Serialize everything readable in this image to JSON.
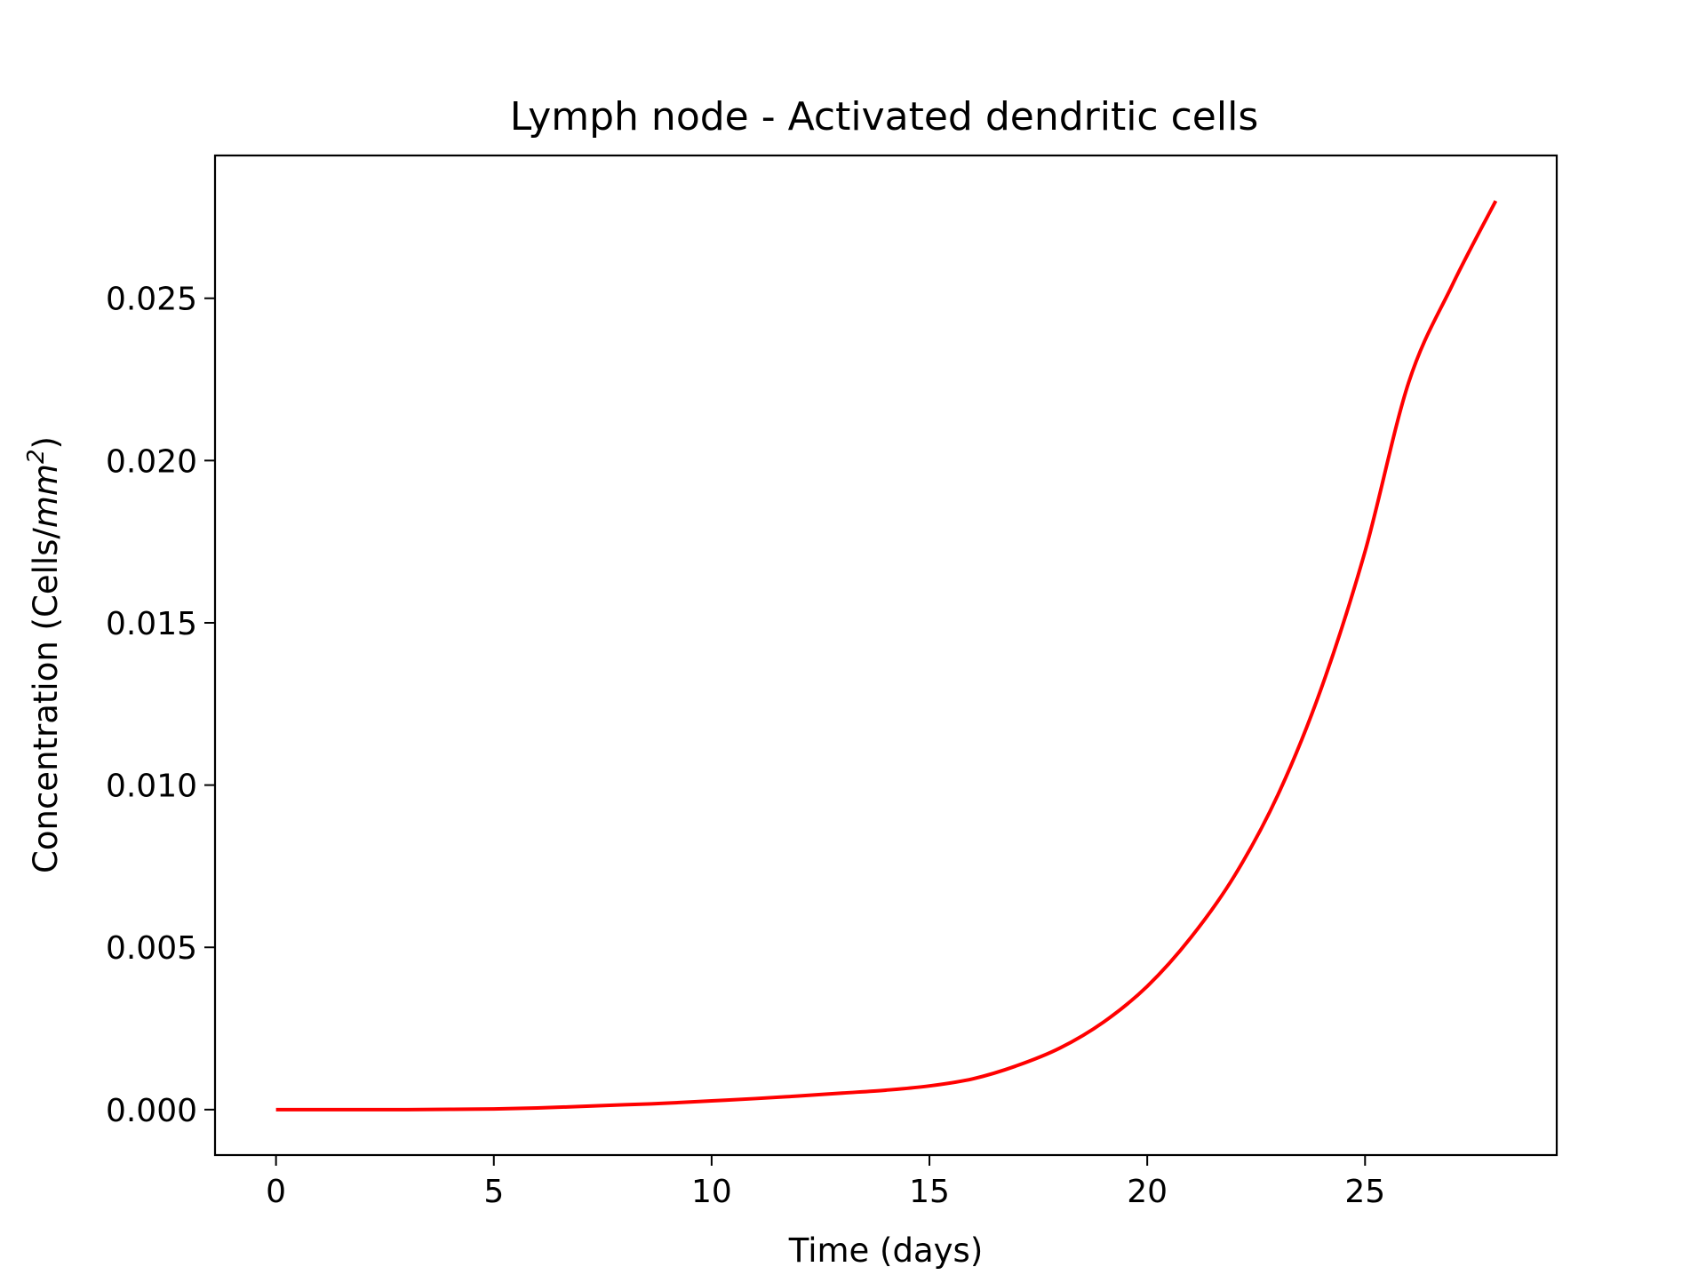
{
  "chart_data": {
    "type": "line",
    "title": "Lymph node - Activated dendritic cells",
    "xlabel": "Time (days)",
    "ylabel": {
      "prefix": "Concentration (Cells/",
      "unit": "mm",
      "exponent": "2",
      "suffix": ")"
    },
    "xlim": [
      -1.4,
      29.4
    ],
    "ylim": [
      -0.0014,
      0.0294
    ],
    "xticks": [
      0,
      5,
      10,
      15,
      20,
      25
    ],
    "xtick_labels": [
      "0",
      "5",
      "10",
      "15",
      "20",
      "25"
    ],
    "yticks": [
      0.0,
      0.005,
      0.01,
      0.015,
      0.02,
      0.025
    ],
    "ytick_labels": [
      "0.000",
      "0.005",
      "0.010",
      "0.015",
      "0.020",
      "0.025"
    ],
    "grid": false,
    "legend": "none",
    "series": [
      {
        "color": "#ff0000",
        "x": [
          0,
          1,
          2,
          3,
          4,
          5,
          6,
          7,
          8,
          9,
          10,
          11,
          12,
          13,
          14,
          15,
          16,
          17,
          18,
          19,
          20,
          21,
          22,
          23,
          24,
          25,
          26,
          27,
          28
        ],
        "y": [
          0.0,
          0.0,
          0.0,
          0.0,
          1e-05,
          2e-05,
          5e-05,
          0.0001,
          0.00015,
          0.0002,
          0.00027,
          0.00034,
          0.00042,
          0.00051,
          0.0006,
          0.00073,
          0.00095,
          0.00135,
          0.0019,
          0.0027,
          0.0038,
          0.0053,
          0.0072,
          0.0097,
          0.013,
          0.0172,
          0.0224,
          0.0254,
          0.028
        ]
      }
    ]
  }
}
